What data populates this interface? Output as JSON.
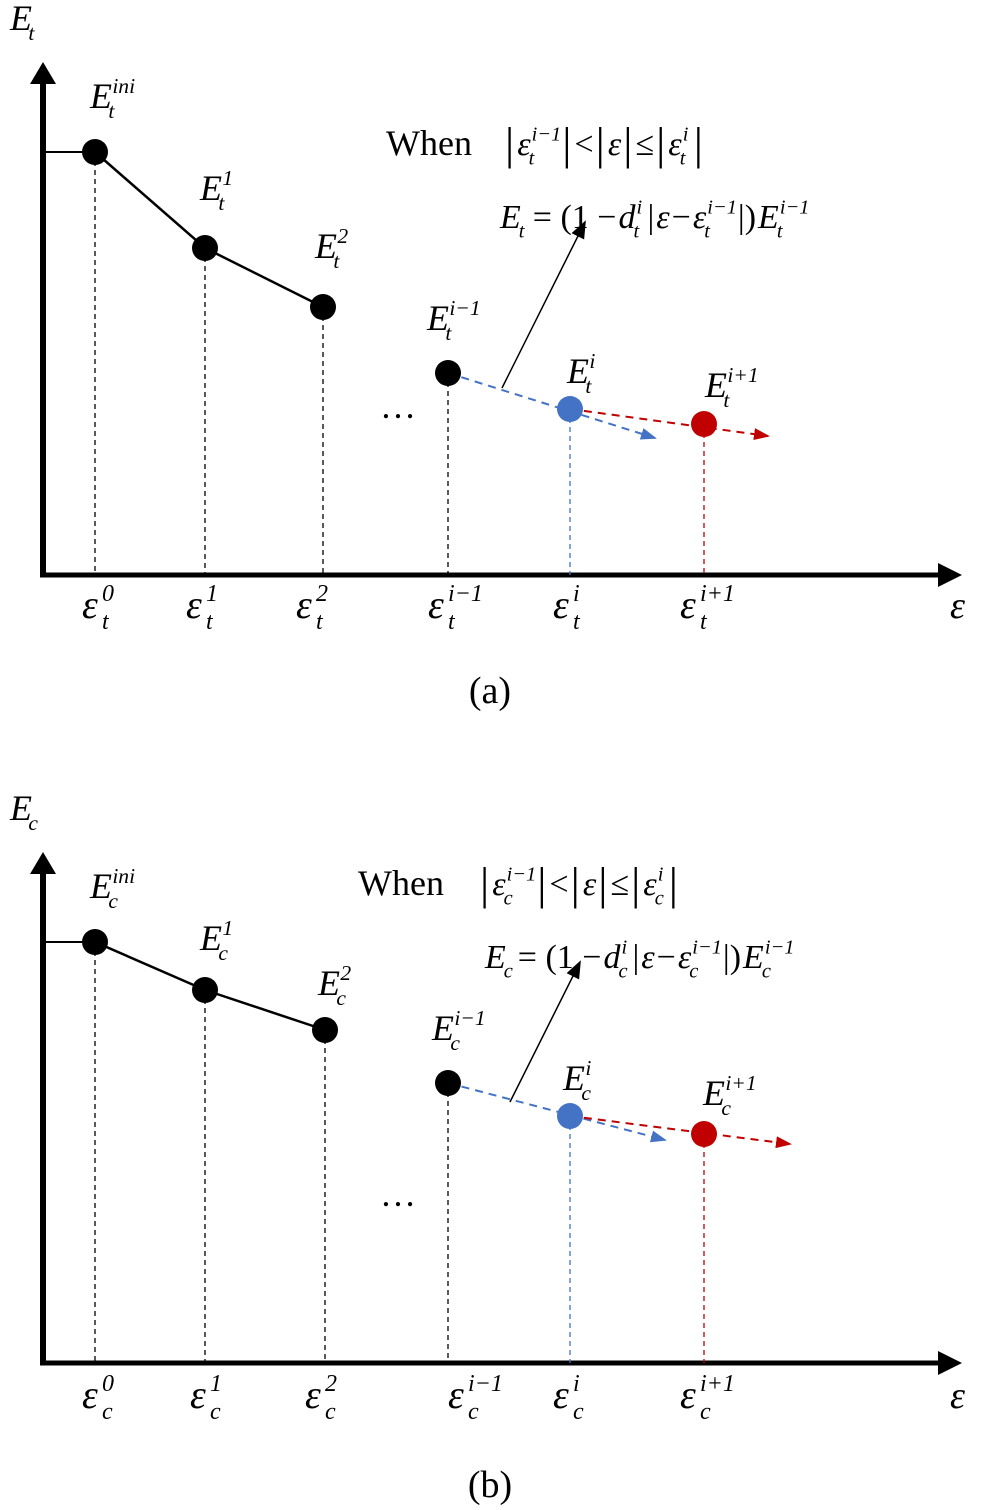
{
  "colors": {
    "black": "#000000",
    "blue": "#4472c4",
    "red": "#c00000"
  },
  "panels": [
    {
      "caption": "(a)",
      "y_axis_label": {
        "base": "E",
        "sub": "t"
      },
      "x_axis_label": "ε",
      "ellipsis": "…",
      "when": "When",
      "condition": [
        {
          "t": "|",
          "i": false
        },
        {
          "t": "ε",
          "sub": "t",
          "sup": "i−1",
          "i": true
        },
        {
          "t": "|",
          "i": false
        },
        {
          "t": " < ",
          "i": false
        },
        {
          "t": "|",
          "i": false
        },
        {
          "t": "ε",
          "i": true
        },
        {
          "t": "|",
          "i": false
        },
        {
          "t": " ≤ ",
          "i": false
        },
        {
          "t": "|",
          "i": false
        },
        {
          "t": "ε",
          "sub": "t",
          "sup": "i",
          "i": true
        },
        {
          "t": "|",
          "i": false
        }
      ],
      "equation": [
        {
          "t": "E",
          "sub": "t",
          "i": true
        },
        {
          "t": " = (1 − ",
          "i": false
        },
        {
          "t": "d",
          "sub": "t",
          "sup": "i",
          "i": true
        },
        {
          "t": " |",
          "i": false
        },
        {
          "t": "ε",
          "i": true
        },
        {
          "t": " − ",
          "i": false
        },
        {
          "t": "ε",
          "sub": "t",
          "sup": "i−1",
          "i": true
        },
        {
          "t": "|)",
          "i": false
        },
        {
          "t": "E",
          "sub": "t",
          "sup": "i−1",
          "i": true
        }
      ],
      "points": [
        {
          "base": "E",
          "sub": "t",
          "sup": "ini",
          "color": "black"
        },
        {
          "base": "E",
          "sub": "t",
          "sup": "1",
          "color": "black"
        },
        {
          "base": "E",
          "sub": "t",
          "sup": "2",
          "color": "black"
        },
        {
          "base": "E",
          "sub": "t",
          "sup": "i−1",
          "color": "black"
        },
        {
          "base": "E",
          "sub": "t",
          "sup": "i",
          "color": "blue"
        },
        {
          "base": "E",
          "sub": "t",
          "sup": "i+1",
          "color": "red"
        }
      ],
      "ticks": [
        {
          "base": "ε",
          "sub": "t",
          "sup": "0"
        },
        {
          "base": "ε",
          "sub": "t",
          "sup": "1"
        },
        {
          "base": "ε",
          "sub": "t",
          "sup": "2"
        },
        {
          "base": "ε",
          "sub": "t",
          "sup": "i−1"
        },
        {
          "base": "ε",
          "sub": "t",
          "sup": "i"
        },
        {
          "base": "ε",
          "sub": "t",
          "sup": "i+1"
        }
      ]
    },
    {
      "caption": "(b)",
      "y_axis_label": {
        "base": "E",
        "sub": "c"
      },
      "x_axis_label": "ε",
      "ellipsis": "…",
      "when": "When",
      "condition": [
        {
          "t": "|",
          "i": false
        },
        {
          "t": "ε",
          "sub": "c",
          "sup": "i−1",
          "i": true
        },
        {
          "t": "|",
          "i": false
        },
        {
          "t": " < ",
          "i": false
        },
        {
          "t": "|",
          "i": false
        },
        {
          "t": "ε",
          "i": true
        },
        {
          "t": "|",
          "i": false
        },
        {
          "t": " ≤ ",
          "i": false
        },
        {
          "t": "|",
          "i": false
        },
        {
          "t": "ε",
          "sub": "c",
          "sup": "i",
          "i": true
        },
        {
          "t": "|",
          "i": false
        }
      ],
      "equation": [
        {
          "t": "E",
          "sub": "c",
          "i": true
        },
        {
          "t": " = (1 − ",
          "i": false
        },
        {
          "t": "d",
          "sub": "c",
          "sup": "i",
          "i": true
        },
        {
          "t": " |",
          "i": false
        },
        {
          "t": "ε",
          "i": true
        },
        {
          "t": " − ",
          "i": false
        },
        {
          "t": "ε",
          "sub": "c",
          "sup": "i−1",
          "i": true
        },
        {
          "t": "|)",
          "i": false
        },
        {
          "t": "E",
          "sub": "c",
          "sup": "i−1",
          "i": true
        }
      ],
      "points": [
        {
          "base": "E",
          "sub": "c",
          "sup": "ini",
          "color": "black"
        },
        {
          "base": "E",
          "sub": "c",
          "sup": "1",
          "color": "black"
        },
        {
          "base": "E",
          "sub": "c",
          "sup": "2",
          "color": "black"
        },
        {
          "base": "E",
          "sub": "c",
          "sup": "i−1",
          "color": "black"
        },
        {
          "base": "E",
          "sub": "c",
          "sup": "i",
          "color": "blue"
        },
        {
          "base": "E",
          "sub": "c",
          "sup": "i+1",
          "color": "red"
        }
      ],
      "ticks": [
        {
          "base": "ε",
          "sub": "c",
          "sup": "0"
        },
        {
          "base": "ε",
          "sub": "c",
          "sup": "1"
        },
        {
          "base": "ε",
          "sub": "c",
          "sup": "2"
        },
        {
          "base": "ε",
          "sub": "c",
          "sup": "i−1"
        },
        {
          "base": "ε",
          "sub": "c",
          "sup": "i"
        },
        {
          "base": "ε",
          "sub": "c",
          "sup": "i+1"
        }
      ]
    }
  ]
}
